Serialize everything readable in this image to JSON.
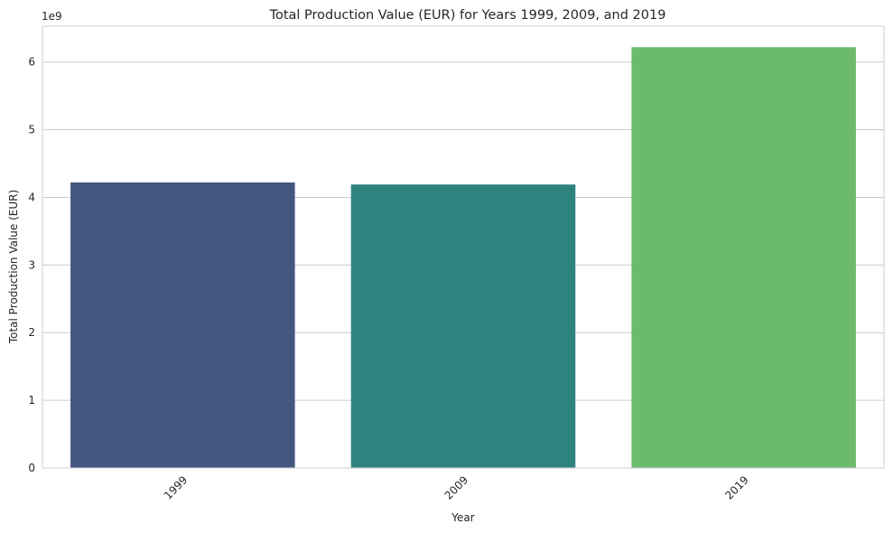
{
  "chart_data": {
    "type": "bar",
    "title": "Total Production Value (EUR) for Years 1999, 2009, and 2019",
    "xlabel": "Year",
    "ylabel": "Total Production Value (EUR)",
    "offset_label": "1e9",
    "categories": [
      "1999",
      "2009",
      "2019"
    ],
    "values": [
      4.22,
      4.19,
      6.22
    ],
    "value_unit_multiplier": 1000000000,
    "ylim": [
      0,
      6.53
    ],
    "yticks": [
      0,
      1,
      2,
      3,
      4,
      5,
      6
    ],
    "colors": [
      "#45577f",
      "#2f837e",
      "#6cbb6c"
    ],
    "grid": true,
    "xtick_rotation": -45
  }
}
